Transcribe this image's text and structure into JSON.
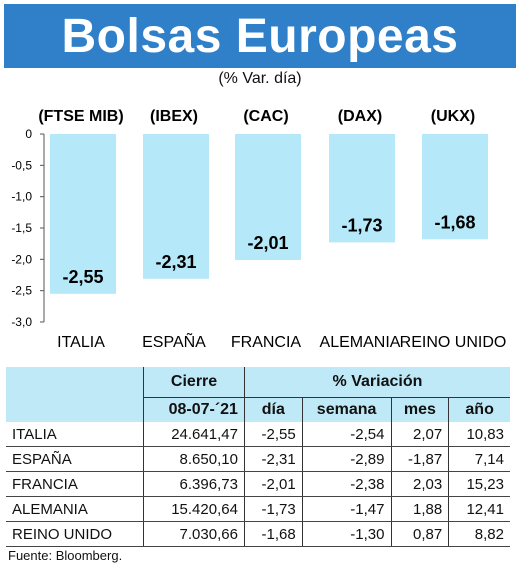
{
  "title": "Bolsas Europeas",
  "subtitle": "(% Var. día)",
  "chart_data": {
    "type": "bar",
    "categories": [
      "ITALIA",
      "ESPAÑA",
      "FRANCIA",
      "ALEMANIA",
      "REINO UNIDO"
    ],
    "indices": [
      "(FTSE MIB)",
      "(IBEX)",
      "(CAC)",
      "(DAX)",
      "(UKX)"
    ],
    "values": [
      -2.55,
      -2.31,
      -2.01,
      -1.73,
      -1.68
    ],
    "value_labels": [
      "-2,55",
      "-2,31",
      "-2,01",
      "-1,73",
      "-1,68"
    ],
    "ylim": [
      -3.0,
      0
    ],
    "yticks": [
      0,
      -0.5,
      -1.0,
      -1.5,
      -2.0,
      -2.5,
      -3.0
    ],
    "ytick_labels": [
      "0",
      "-0,5",
      "-1,0",
      "-1,5",
      "-2,0",
      "-2,5",
      "-3,0"
    ],
    "bar_color": "#b5e8f8",
    "grid": false
  },
  "table": {
    "cierre_header": "Cierre",
    "variacion_header": "% Variación",
    "date": "08-07-´21",
    "sub_headers": [
      "día",
      "semana",
      "mes",
      "año"
    ],
    "rows": [
      {
        "name": "ITALIA",
        "cierre": "24.641,47",
        "dia": "-2,55",
        "semana": "-2,54",
        "mes": "2,07",
        "anio": "10,83"
      },
      {
        "name": "ESPAÑA",
        "cierre": "8.650,10",
        "dia": "-2,31",
        "semana": "-2,89",
        "mes": "-1,87",
        "anio": "7,14"
      },
      {
        "name": "FRANCIA",
        "cierre": "6.396,73",
        "dia": "-2,01",
        "semana": "-2,38",
        "mes": "2,03",
        "anio": "15,23"
      },
      {
        "name": "ALEMANIA",
        "cierre": "15.420,64",
        "dia": "-1,73",
        "semana": "-1,47",
        "mes": "1,88",
        "anio": "12,41"
      },
      {
        "name": "REINO UNIDO",
        "cierre": "7.030,66",
        "dia": "-1,68",
        "semana": "-1,30",
        "mes": "0,87",
        "anio": "8,82"
      }
    ],
    "header_color": "#bfe9f6"
  },
  "source": "Fuente: Bloomberg.",
  "colors": {
    "title_bg": "#2f7fc9",
    "title_fg": "#ffffff"
  }
}
